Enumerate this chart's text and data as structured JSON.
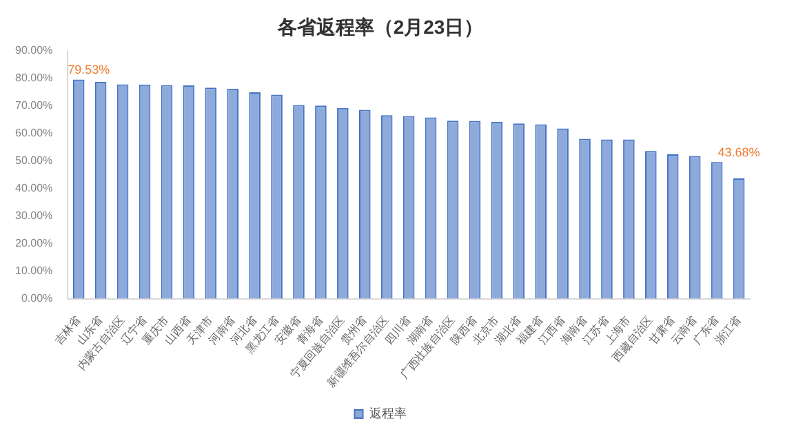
{
  "chart_data": {
    "type": "bar",
    "title": "各省返程率（2月23日）",
    "categories": [
      "吉林省",
      "山东省",
      "内蒙古自治区",
      "辽宁省",
      "重庆市",
      "山西省",
      "天津市",
      "河南省",
      "河北省",
      "黑龙江省",
      "安徽省",
      "青海省",
      "宁夏回族自治区",
      "贵州省",
      "新疆维吾尔自治区",
      "四川省",
      "湖南省",
      "广西壮族自治区",
      "陕西省",
      "北京市",
      "湖北省",
      "福建省",
      "江西省",
      "海南省",
      "江苏省",
      "上海市",
      "西藏自治区",
      "甘肃省",
      "云南省",
      "广东省",
      "浙江省"
    ],
    "series": [
      {
        "name": "返程率",
        "color": "#8eaadb",
        "values": [
          79.53,
          78.7,
          77.8,
          77.7,
          77.5,
          77.4,
          76.6,
          76.2,
          74.9,
          74.0,
          70.3,
          70.1,
          69.2,
          68.5,
          66.6,
          66.3,
          65.8,
          64.6,
          64.5,
          64.2,
          63.6,
          63.3,
          61.8,
          58.0,
          57.8,
          57.8,
          53.6,
          52.4,
          51.8,
          49.6,
          43.68
        ],
        "value_labels": [
          "79.53%",
          null,
          null,
          null,
          null,
          null,
          null,
          null,
          null,
          null,
          null,
          null,
          null,
          null,
          null,
          null,
          null,
          null,
          null,
          null,
          null,
          null,
          null,
          null,
          null,
          null,
          null,
          null,
          null,
          null,
          "43.68%"
        ]
      }
    ],
    "ylim": [
      0,
      90
    ],
    "yticks": [
      {
        "value": 0,
        "label": "0.00%"
      },
      {
        "value": 10,
        "label": "10.00%"
      },
      {
        "value": 20,
        "label": "20.00%"
      },
      {
        "value": 30,
        "label": "30.00%"
      },
      {
        "value": 40,
        "label": "40.00%"
      },
      {
        "value": 50,
        "label": "50.00%"
      },
      {
        "value": 60,
        "label": "60.00%"
      },
      {
        "value": 70,
        "label": "70.00%"
      },
      {
        "value": 80,
        "label": "80.00%"
      },
      {
        "value": 90,
        "label": "90.00%"
      }
    ],
    "grid": false,
    "legend": "bottom"
  }
}
